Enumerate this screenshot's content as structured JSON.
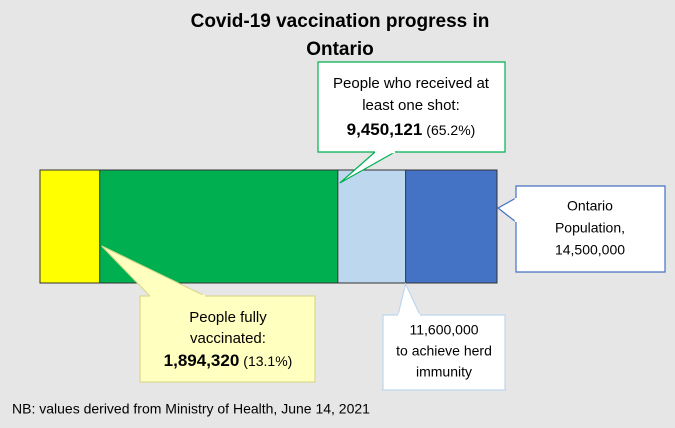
{
  "chart_data": {
    "type": "progress",
    "title_lines": [
      "Covid-19 vaccination progress in",
      "Ontario"
    ],
    "total": {
      "label_lines": [
        "Ontario",
        "Population,"
      ],
      "value": 14500000,
      "value_label": "14,500,000",
      "color": "#4472c4"
    },
    "segments": [
      {
        "label_lines": [
          "People fully",
          "vaccinated:"
        ],
        "value": 1894320,
        "value_label": "1,894,320",
        "percent_label": "(13.1%)",
        "color": "#ffff00"
      },
      {
        "label_lines": [
          "People who received at",
          "least one shot:"
        ],
        "value": 9450121,
        "value_label": "9,450,121",
        "percent_label": "(65.2%)",
        "color": "#00b050"
      },
      {
        "label_lines": [
          "to achieve herd",
          "immunity"
        ],
        "value": 11600000,
        "value_label": "11,600,000",
        "color": "#bdd7ee"
      }
    ],
    "note": "NB: values derived from Ministry of Health, June 14, 2021"
  }
}
